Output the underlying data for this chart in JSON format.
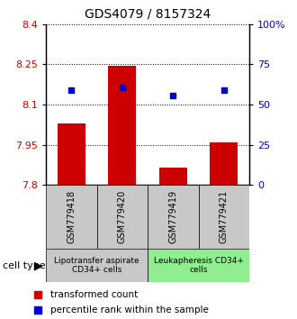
{
  "title": "GDS4079 / 8157324",
  "samples": [
    "GSM779418",
    "GSM779420",
    "GSM779419",
    "GSM779421"
  ],
  "bar_values": [
    8.03,
    8.245,
    7.865,
    7.96
  ],
  "bar_bottom": 7.8,
  "percentile_values": [
    8.155,
    8.165,
    8.135,
    8.152
  ],
  "ylim": [
    7.8,
    8.4
  ],
  "yticks_left": [
    7.8,
    7.95,
    8.1,
    8.25,
    8.4
  ],
  "yticks_right": [
    0,
    25,
    50,
    75,
    100
  ],
  "bar_color": "#cc0000",
  "percentile_color": "#0000cc",
  "grid_color": "#000000",
  "group1_label": "Lipotransfer aspirate\nCD34+ cells",
  "group2_label": "Leukapheresis CD34+\ncells",
  "group1_color": "#c8c8c8",
  "group2_color": "#90ee90",
  "legend_red_label": "transformed count",
  "legend_blue_label": "percentile rank within the sample",
  "cell_type_label": "cell type"
}
